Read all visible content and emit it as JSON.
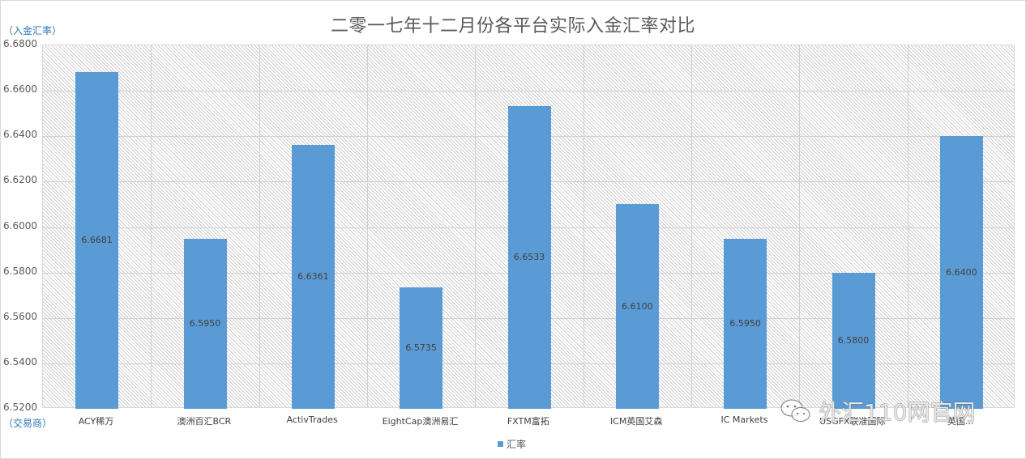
{
  "chart_data": {
    "type": "bar",
    "title": "二零一七年十二月份各平台实际入金汇率对比",
    "xlabel": "（交易商）",
    "ylabel": "（入金汇率）",
    "ylim": [
      6.52,
      6.68
    ],
    "yticks": [
      "6.6800",
      "6.6600",
      "6.6400",
      "6.6200",
      "6.6000",
      "6.5800",
      "6.5600",
      "6.5400",
      "6.5200"
    ],
    "grid": true,
    "legend_position": "bottom",
    "categories": [
      "ACY稀万",
      "澳洲百汇BCR",
      "ActivTrades",
      "EightCap澳洲易汇",
      "FXTM富拓",
      "ICM英国艾森",
      "IC Markets",
      "USGFX联准国际",
      "英国..."
    ],
    "series": [
      {
        "name": "汇率",
        "color": "#5b9bd5",
        "values": [
          6.6681,
          6.595,
          6.6361,
          6.5735,
          6.6533,
          6.61,
          6.595,
          6.58,
          6.64
        ],
        "labels": [
          "6.6681",
          "6.5950",
          "6.6361",
          "6.5735",
          "6.6533",
          "6.6100",
          "6.5950",
          "6.5800",
          "6.6400"
        ]
      }
    ]
  },
  "watermark": {
    "text": "外汇110网官网",
    "icon": "wechat-icon"
  }
}
